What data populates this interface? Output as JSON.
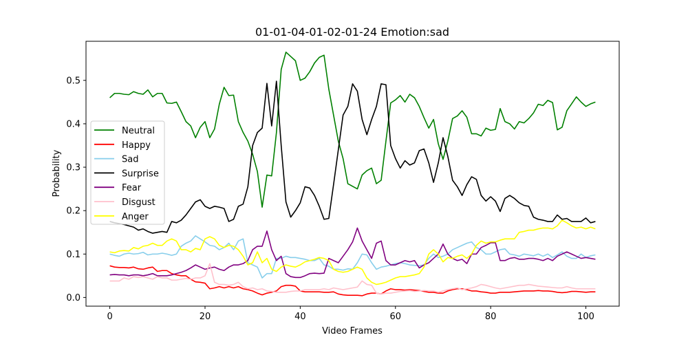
{
  "chart_data": {
    "type": "line",
    "title": "01-01-04-01-02-01-24 Emotion:sad",
    "xlabel": "Video Frames",
    "ylabel": "Probability",
    "xlim": [
      -5,
      107
    ],
    "ylim": [
      -0.02,
      0.59
    ],
    "xticks": [
      0,
      20,
      40,
      60,
      80,
      100
    ],
    "yticks": [
      0.0,
      0.1,
      0.2,
      0.3,
      0.4,
      0.5
    ],
    "legend_position": "center-left",
    "grid": false,
    "series": [
      {
        "name": "Neutral",
        "color": "#008000",
        "values": [
          0.46,
          0.47,
          0.47,
          0.468,
          0.467,
          0.474,
          0.47,
          0.468,
          0.478,
          0.462,
          0.47,
          0.47,
          0.448,
          0.447,
          0.45,
          0.428,
          0.405,
          0.395,
          0.368,
          0.392,
          0.405,
          0.368,
          0.388,
          0.445,
          0.484,
          0.465,
          0.466,
          0.405,
          0.38,
          0.36,
          0.33,
          0.29,
          0.208,
          0.282,
          0.28,
          0.38,
          0.525,
          0.565,
          0.555,
          0.545,
          0.5,
          0.505,
          0.52,
          0.54,
          0.553,
          0.558,
          0.48,
          0.42,
          0.36,
          0.32,
          0.262,
          0.256,
          0.25,
          0.282,
          0.292,
          0.298,
          0.262,
          0.27,
          0.36,
          0.448,
          0.455,
          0.465,
          0.45,
          0.468,
          0.46,
          0.44,
          0.414,
          0.39,
          0.41,
          0.354,
          0.318,
          0.36,
          0.412,
          0.418,
          0.43,
          0.415,
          0.377,
          0.377,
          0.372,
          0.39,
          0.385,
          0.387,
          0.435,
          0.405,
          0.4,
          0.388,
          0.405,
          0.402,
          0.412,
          0.425,
          0.445,
          0.442,
          0.454,
          0.449,
          0.386,
          0.392,
          0.43,
          0.446,
          0.462,
          0.45,
          0.44,
          0.446,
          0.45
        ]
      },
      {
        "name": "Happy",
        "color": "#ff0000",
        "values": [
          0.073,
          0.07,
          0.069,
          0.069,
          0.068,
          0.07,
          0.066,
          0.065,
          0.068,
          0.07,
          0.06,
          0.062,
          0.062,
          0.055,
          0.052,
          0.05,
          0.05,
          0.042,
          0.036,
          0.035,
          0.033,
          0.02,
          0.022,
          0.025,
          0.022,
          0.025,
          0.022,
          0.025,
          0.02,
          0.018,
          0.015,
          0.01,
          0.006,
          0.01,
          0.012,
          0.015,
          0.025,
          0.028,
          0.028,
          0.026,
          0.015,
          0.013,
          0.013,
          0.013,
          0.013,
          0.012,
          0.012,
          0.013,
          0.008,
          0.006,
          0.005,
          0.005,
          0.005,
          0.004,
          0.008,
          0.01,
          0.01,
          0.008,
          0.015,
          0.02,
          0.018,
          0.018,
          0.017,
          0.018,
          0.017,
          0.016,
          0.014,
          0.012,
          0.012,
          0.01,
          0.01,
          0.015,
          0.018,
          0.02,
          0.02,
          0.018,
          0.015,
          0.015,
          0.013,
          0.012,
          0.01,
          0.01,
          0.012,
          0.012,
          0.012,
          0.013,
          0.014,
          0.015,
          0.015,
          0.015,
          0.016,
          0.015,
          0.015,
          0.014,
          0.012,
          0.011,
          0.012,
          0.014,
          0.014,
          0.013,
          0.012,
          0.013,
          0.013
        ]
      },
      {
        "name": "Sad",
        "color": "#87ceeb",
        "values": [
          0.1,
          0.097,
          0.095,
          0.1,
          0.102,
          0.1,
          0.101,
          0.104,
          0.098,
          0.1,
          0.1,
          0.102,
          0.1,
          0.097,
          0.1,
          0.118,
          0.125,
          0.13,
          0.142,
          0.135,
          0.128,
          0.12,
          0.118,
          0.11,
          0.115,
          0.125,
          0.11,
          0.13,
          0.135,
          0.08,
          0.075,
          0.07,
          0.045,
          0.055,
          0.055,
          0.09,
          0.09,
          0.095,
          0.092,
          0.092,
          0.09,
          0.088,
          0.085,
          0.085,
          0.09,
          0.075,
          0.072,
          0.065,
          0.065,
          0.063,
          0.066,
          0.065,
          0.08,
          0.1,
          0.098,
          0.08,
          0.065,
          0.07,
          0.072,
          0.075,
          0.078,
          0.08,
          0.078,
          0.075,
          0.074,
          0.073,
          0.075,
          0.09,
          0.1,
          0.092,
          0.095,
          0.1,
          0.11,
          0.115,
          0.12,
          0.125,
          0.128,
          0.115,
          0.11,
          0.1,
          0.1,
          0.105,
          0.11,
          0.112,
          0.1,
          0.098,
          0.095,
          0.1,
          0.098,
          0.096,
          0.1,
          0.095,
          0.1,
          0.092,
          0.098,
          0.105,
          0.095,
          0.09,
          0.09,
          0.1,
          0.092,
          0.096,
          0.098
        ]
      },
      {
        "name": "Surprise",
        "color": "#000000",
        "values": [
          0.175,
          0.172,
          0.17,
          0.168,
          0.165,
          0.162,
          0.155,
          0.158,
          0.152,
          0.148,
          0.15,
          0.152,
          0.15,
          0.175,
          0.172,
          0.178,
          0.19,
          0.205,
          0.22,
          0.225,
          0.21,
          0.205,
          0.21,
          0.208,
          0.205,
          0.175,
          0.18,
          0.21,
          0.215,
          0.255,
          0.35,
          0.38,
          0.39,
          0.493,
          0.395,
          0.498,
          0.35,
          0.22,
          0.185,
          0.2,
          0.218,
          0.255,
          0.252,
          0.235,
          0.21,
          0.18,
          0.182,
          0.26,
          0.34,
          0.42,
          0.44,
          0.492,
          0.475,
          0.41,
          0.375,
          0.41,
          0.44,
          0.492,
          0.49,
          0.35,
          0.32,
          0.298,
          0.315,
          0.305,
          0.31,
          0.338,
          0.342,
          0.31,
          0.265,
          0.31,
          0.368,
          0.325,
          0.27,
          0.255,
          0.235,
          0.26,
          0.278,
          0.272,
          0.235,
          0.222,
          0.232,
          0.222,
          0.198,
          0.228,
          0.235,
          0.228,
          0.218,
          0.212,
          0.21,
          0.185,
          0.18,
          0.178,
          0.175,
          0.175,
          0.19,
          0.18,
          0.182,
          0.175,
          0.175,
          0.175,
          0.183,
          0.172,
          0.175
        ]
      },
      {
        "name": "Fear",
        "color": "#800080",
        "values": [
          0.052,
          0.053,
          0.052,
          0.052,
          0.05,
          0.052,
          0.052,
          0.05,
          0.052,
          0.055,
          0.05,
          0.05,
          0.05,
          0.052,
          0.055,
          0.058,
          0.062,
          0.068,
          0.075,
          0.07,
          0.065,
          0.068,
          0.07,
          0.065,
          0.062,
          0.07,
          0.075,
          0.075,
          0.078,
          0.085,
          0.11,
          0.118,
          0.118,
          0.153,
          0.11,
          0.085,
          0.095,
          0.055,
          0.048,
          0.046,
          0.046,
          0.05,
          0.055,
          0.056,
          0.055,
          0.056,
          0.09,
          0.085,
          0.08,
          0.095,
          0.11,
          0.128,
          0.16,
          0.13,
          0.11,
          0.09,
          0.125,
          0.13,
          0.085,
          0.075,
          0.075,
          0.08,
          0.085,
          0.082,
          0.085,
          0.068,
          0.075,
          0.08,
          0.09,
          0.1,
          0.123,
          0.1,
          0.09,
          0.085,
          0.088,
          0.078,
          0.1,
          0.1,
          0.115,
          0.12,
          0.126,
          0.126,
          0.085,
          0.085,
          0.09,
          0.092,
          0.088,
          0.088,
          0.09,
          0.09,
          0.088,
          0.085,
          0.09,
          0.085,
          0.095,
          0.1,
          0.105,
          0.1,
          0.095,
          0.09,
          0.092,
          0.09,
          0.088
        ]
      },
      {
        "name": "Disgust",
        "color": "#ffc0cb",
        "values": [
          0.038,
          0.038,
          0.038,
          0.045,
          0.042,
          0.048,
          0.046,
          0.048,
          0.045,
          0.042,
          0.048,
          0.045,
          0.045,
          0.04,
          0.04,
          0.042,
          0.044,
          0.042,
          0.045,
          0.045,
          0.05,
          0.078,
          0.035,
          0.03,
          0.03,
          0.028,
          0.03,
          0.035,
          0.025,
          0.02,
          0.022,
          0.018,
          0.02,
          0.015,
          0.014,
          0.012,
          0.012,
          0.012,
          0.014,
          0.015,
          0.015,
          0.018,
          0.018,
          0.018,
          0.018,
          0.02,
          0.018,
          0.022,
          0.02,
          0.018,
          0.02,
          0.022,
          0.024,
          0.038,
          0.03,
          0.028,
          0.01,
          0.008,
          0.01,
          0.01,
          0.012,
          0.014,
          0.015,
          0.016,
          0.014,
          0.015,
          0.016,
          0.015,
          0.015,
          0.012,
          0.015,
          0.018,
          0.02,
          0.022,
          0.018,
          0.02,
          0.022,
          0.025,
          0.03,
          0.028,
          0.025,
          0.022,
          0.02,
          0.022,
          0.024,
          0.026,
          0.028,
          0.028,
          0.03,
          0.028,
          0.026,
          0.025,
          0.024,
          0.023,
          0.022,
          0.022,
          0.025,
          0.022,
          0.02,
          0.02,
          0.02,
          0.02,
          0.02
        ]
      },
      {
        "name": "Anger",
        "color": "#ffff00",
        "values": [
          0.105,
          0.103,
          0.107,
          0.108,
          0.107,
          0.115,
          0.112,
          0.118,
          0.12,
          0.125,
          0.12,
          0.12,
          0.13,
          0.135,
          0.13,
          0.11,
          0.11,
          0.105,
          0.113,
          0.11,
          0.135,
          0.14,
          0.135,
          0.12,
          0.115,
          0.12,
          0.118,
          0.11,
          0.095,
          0.075,
          0.08,
          0.105,
          0.08,
          0.09,
          0.065,
          0.06,
          0.07,
          0.075,
          0.072,
          0.07,
          0.075,
          0.082,
          0.085,
          0.088,
          0.092,
          0.09,
          0.085,
          0.065,
          0.06,
          0.058,
          0.06,
          0.065,
          0.07,
          0.065,
          0.045,
          0.035,
          0.03,
          0.032,
          0.035,
          0.04,
          0.045,
          0.048,
          0.048,
          0.05,
          0.052,
          0.055,
          0.07,
          0.1,
          0.11,
          0.1,
          0.082,
          0.092,
          0.09,
          0.095,
          0.098,
          0.09,
          0.1,
          0.12,
          0.13,
          0.125,
          0.128,
          0.128,
          0.132,
          0.135,
          0.135,
          0.135,
          0.15,
          0.152,
          0.155,
          0.155,
          0.158,
          0.16,
          0.16,
          0.158,
          0.165,
          0.178,
          0.172,
          0.165,
          0.16,
          0.162,
          0.158,
          0.162,
          0.158
        ]
      }
    ]
  }
}
